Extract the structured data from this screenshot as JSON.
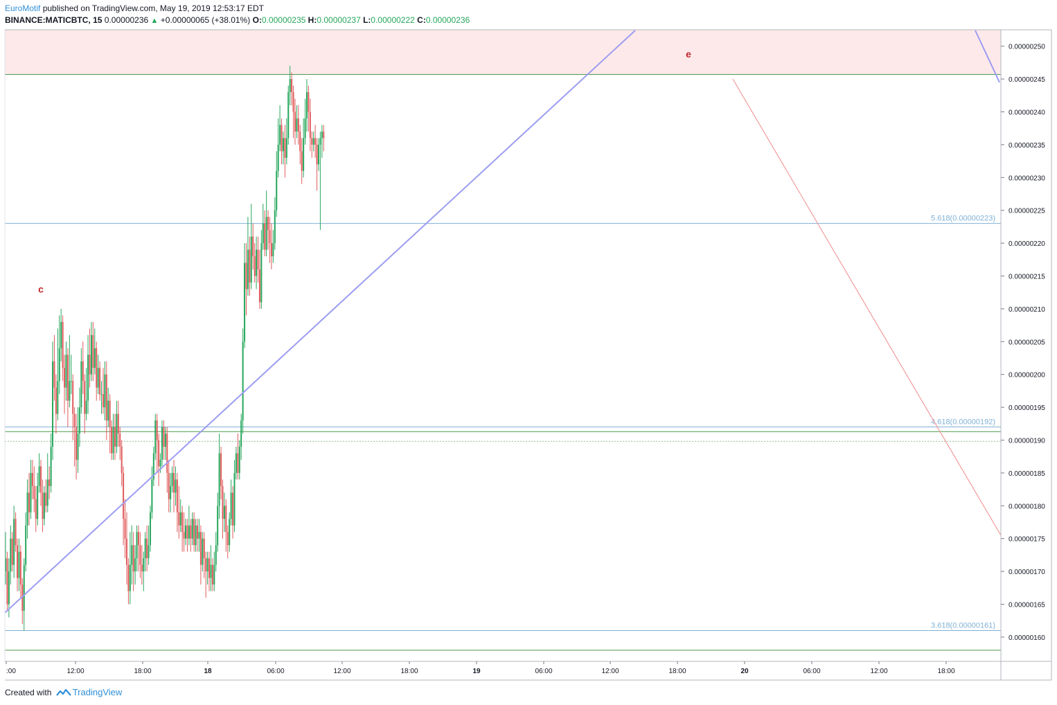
{
  "header": {
    "publisher": "EuroMotif",
    "published_text": "published on TradingView.com, May 19, 2019 12:53:17 EDT",
    "symbol": "BINANCE:MATICBTC, 15",
    "last": "0.00000236",
    "change": "+0.00000065 (+38.01%)",
    "open_label": "O:",
    "open": "0.00000235",
    "high_label": "H:",
    "high": "0.00000237",
    "low_label": "L:",
    "low": "0.00000222",
    "close_label": "C:",
    "close": "0.00000236"
  },
  "footer": {
    "created_with": "Created with",
    "brand": "TradingView"
  },
  "colors": {
    "up": "#26a65b",
    "down": "#e05a5a",
    "trendline": "#9c9cf2",
    "fib_line": "#7fb1d6",
    "fib_text": "#7fb1d6",
    "resistance_zone": "#fde9e9",
    "support_line": "#4c9a4c",
    "wave_label": "#c0262c",
    "projection": "#f08a8a"
  },
  "chart_data": {
    "type": "candlestick",
    "symbol": "BINANCE:MATICBTC",
    "interval": "15",
    "y_ticks": [
      "0.00000160",
      "0.00000165",
      "0.00000170",
      "0.00000175",
      "0.00000180",
      "0.00000185",
      "0.00000190",
      "0.00000195",
      "0.00000200",
      "0.00000205",
      "0.00000210",
      "0.00000215",
      "0.00000220",
      "0.00000225",
      "0.00000230",
      "0.00000235",
      "0.00000240",
      "0.00000245",
      "0.00000250"
    ],
    "x_ticks": [
      ":00",
      "12:00",
      "18:00",
      "18",
      "06:00",
      "12:00",
      "18:00",
      "19",
      "06:00",
      "12:00",
      "18:00",
      "20",
      "06:00",
      "12:00",
      "18:00"
    ],
    "ylim": [
      1.563e-06,
      2.525e-06
    ],
    "fib_levels": [
      {
        "label": "5.618(0.00000223)",
        "value": 2.23e-06
      },
      {
        "label": "4.618(0.00000192)",
        "value": 1.92e-06
      },
      {
        "label": "3.618(0.00000161)",
        "value": 1.61e-06
      }
    ],
    "support_lines": [
      1.913e-06,
      1.58e-06
    ],
    "resistance_zone": [
      2.457e-06,
      2.525e-06
    ],
    "wave_labels": [
      {
        "text": "c",
        "time_index": 5,
        "price": 2.13e-06
      },
      {
        "text": "e",
        "time_index": 395,
        "price": 2.488e-06
      }
    ],
    "candles_compact": "170,172,168,176;172,165,164,173;165,170,163,172;170,175,168,177;175,171,170,176;171,178,169,180;178,174,173,179;174,169,167,175;169,173,167,175;173,168,166,174;168,164,162,169;164,171,161,172;171,177,170,179;177,182,175,184;182,179,177,185;179,185,178,187;185,183,181,187;183,181,179,186;181,178,176,183;178,183,177,185;183,186,182,188;186,182,180,187;182,178,176,184;178,182,177,183;182,180,179,184;180,184,179,188;184,183,181,186;183,189,182,191;189,202,187,205;202,198,196,206;198,194,191,200;194,199,193,207;199,204,197,209;204,208,202,210;208,201,199,209;201,198,194,203;198,203,196,205;203,196,192,204;196,199,195,206;199,199,197,203;199,194,190,200;194,192,186,195;192,187,184,194;187,191,185,195;191,195,189,198;195,202,194,204;202,199,197,205;199,194,191,200;194,196,193,201;196,203,194,206;203,200,198,207;200,206,199,208;206,201,199,208;201,204,200,207;204,198,196,205;198,201,197,203;201,197,196,202;197,197,194,199;197,195,194,201;195,200,193,202;200,193,190,202;193,196,192,198;196,192,188,197;192,188,187,193;188,192,187,194;192,189,187,194;189,194,188,196;194,191,189,196;191,189,187,192;189,185,183,190;185,178,174,186;178,175,172,181;175,171,168,179;171,167,165,172;167,171,165,176;171,174,168,177;174,170,167,176;170,172,168,174;172,176,170,177;176,174,170,177;174,171,169,176;171,170,168,174;170,172,167,173;172,175,170,176;175,172,170,177;172,174,171,177;174,179,173,180;179,184,178,186;184,188,183,189;188,193,187,194;193,190,185,194;190,186,183,191;186,187,185,188;187,192,186,193;192,189,187,193;189,191,187,192;191,185,182,192;185,181,179,187;181,183,179,185;183,185,182,186;185,182,179,187;182,184,180,186;184,179,176,185;179,177,175,183;177,179,176,181;179,176,173,180;176,175,173,179;175,177,174,178;177,175,173,178;175,177,174,180;177,175,173,178;175,178,174,179;178,174,173,179;174,177,173,178;177,175,173,178;175,176,173,178;176,171,168,177;171,175,170,176;175,172,169,176;172,170,166,173;170,172,168,173;172,169,167,173;169,171,167,174;171,168,167,172;168,171,167,173;171,174,170,176;174,180,173,182;180,188,178,191;188,183,181,189;183,178,175,184;178,180,176,182;180,176,173,181;176,174,172,177;174,178,173,179;178,182,177,184;182,177,175,183;177,185,176,187;185,188,184,189;188,185,184,191;185,189,184,190;189,193,187,194;193,205,191,207;205,217,204,220;217,213,209,220;213,219,212,224;219,214,212,221;214,221,213,226;221,218,216,223;218,215,214,220;215,219,213,221;219,216,214,221;216,211,210,219;211,220,210,222;220,223,219,226;223,219,218,225;219,224,218,228;224,222,219,225;222,220,217,224;220,218,216,223;218,220,217,222;220,225,219,227;225,231,224,234;231,235,230,239;235,238,234,241;238,234,232,239;234,236,232,237;236,233,230,238;233,236,232,239;236,243,235,244;243,245,241,247;245,243,241,246;243,240,236,244;240,237,235,242;237,239,236,241;239,237,235,241;237,234,232,238;234,231,229,236;231,236,230,239;236,239,235,242;239,243,237,245;243,240,237,244;240,236,234,242;236,235,233,237;235,236,234,237;236,235,233,238;235,232,228,236;232,235,231,236;235,236,222,237;236,237,233,238;237,236,234,238"
  }
}
